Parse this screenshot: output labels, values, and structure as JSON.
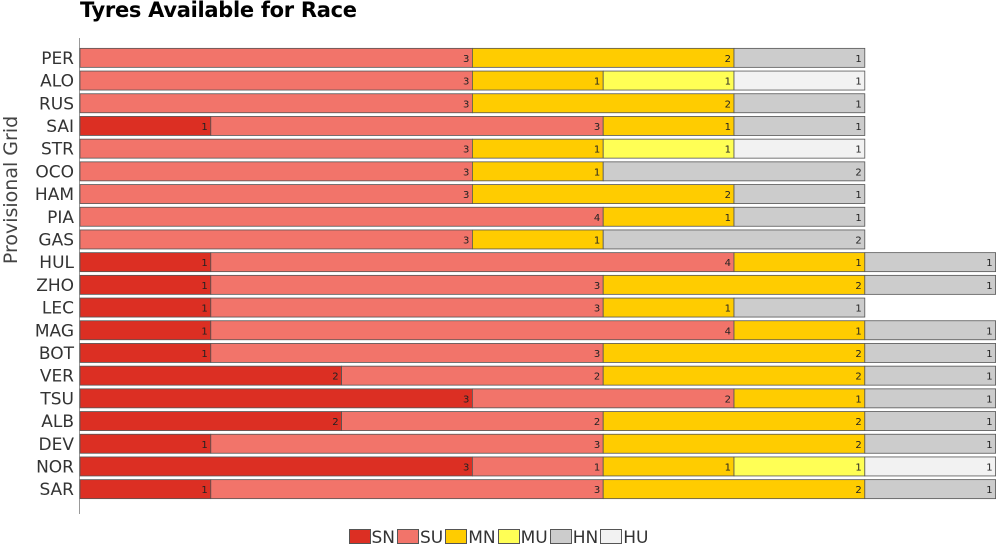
{
  "chart_data": {
    "type": "bar",
    "orientation": "horizontal",
    "stacked": true,
    "title": "Tyres Available for Race",
    "ylabel": "Provisional Grid",
    "xlabel": "",
    "grid": false,
    "legend_position": "bottom",
    "categories": [
      "PER",
      "ALO",
      "RUS",
      "SAI",
      "STR",
      "OCO",
      "HAM",
      "PIA",
      "GAS",
      "HUL",
      "ZHO",
      "LEC",
      "MAG",
      "BOT",
      "VER",
      "TSU",
      "ALB",
      "DEV",
      "NOR",
      "SAR"
    ],
    "series": [
      {
        "name": "SN",
        "color": "#dc2f23",
        "values": [
          0,
          0,
          0,
          1,
          0,
          0,
          0,
          0,
          0,
          1,
          1,
          1,
          1,
          1,
          2,
          3,
          2,
          1,
          3,
          1
        ]
      },
      {
        "name": "SU",
        "color": "#f2746a",
        "values": [
          3,
          3,
          3,
          3,
          3,
          3,
          3,
          4,
          3,
          4,
          3,
          3,
          4,
          3,
          2,
          2,
          2,
          3,
          1,
          3
        ]
      },
      {
        "name": "MN",
        "color": "#ffcc00",
        "values": [
          2,
          1,
          2,
          1,
          1,
          1,
          2,
          1,
          1,
          1,
          2,
          1,
          1,
          2,
          2,
          1,
          2,
          2,
          1,
          2
        ]
      },
      {
        "name": "MU",
        "color": "#ffff55",
        "values": [
          0,
          1,
          0,
          0,
          1,
          0,
          0,
          0,
          0,
          0,
          0,
          0,
          0,
          0,
          0,
          0,
          0,
          0,
          1,
          0
        ]
      },
      {
        "name": "HN",
        "color": "#cccccc",
        "values": [
          1,
          0,
          1,
          1,
          0,
          2,
          1,
          1,
          2,
          1,
          1,
          1,
          1,
          1,
          1,
          1,
          1,
          1,
          0,
          1
        ]
      },
      {
        "name": "HU",
        "color": "#f2f2f2",
        "values": [
          0,
          1,
          0,
          0,
          1,
          0,
          0,
          0,
          0,
          0,
          0,
          0,
          0,
          0,
          0,
          0,
          0,
          0,
          1,
          0
        ]
      }
    ]
  }
}
